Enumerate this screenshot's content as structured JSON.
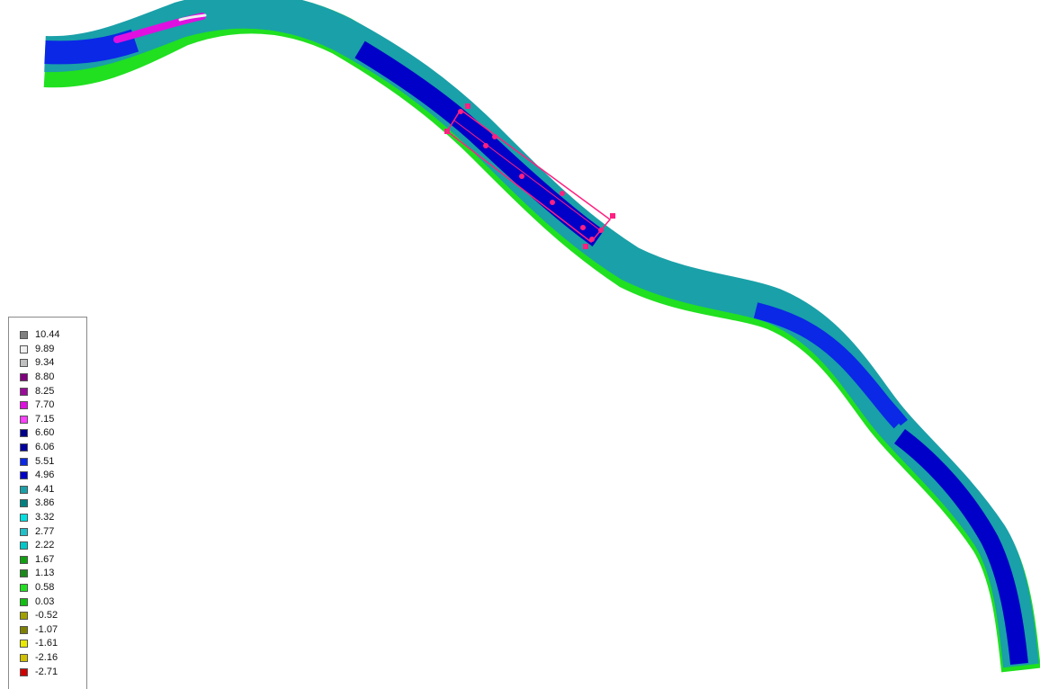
{
  "legend": {
    "entries": [
      {
        "label": "10.44",
        "color": "#808080"
      },
      {
        "label": "9.89",
        "color": "#f0f0f0"
      },
      {
        "label": "9.34",
        "color": "#c0c0c0"
      },
      {
        "label": "8.80",
        "color": "#800080"
      },
      {
        "label": "8.25",
        "color": "#9a0b9a"
      },
      {
        "label": "7.70",
        "color": "#e010e0"
      },
      {
        "label": "7.15",
        "color": "#ff40ff"
      },
      {
        "label": "6.60",
        "color": "#00008b"
      },
      {
        "label": "6.06",
        "color": "#0000a0"
      },
      {
        "label": "5.51",
        "color": "#0a28e6"
      },
      {
        "label": "4.96",
        "color": "#0000c8"
      },
      {
        "label": "4.41",
        "color": "#1aa0a8"
      },
      {
        "label": "3.86",
        "color": "#008080"
      },
      {
        "label": "3.32",
        "color": "#00e0e0"
      },
      {
        "label": "2.77",
        "color": "#20c0c8"
      },
      {
        "label": "2.22",
        "color": "#00c8c8"
      },
      {
        "label": "1.67",
        "color": "#10a010"
      },
      {
        "label": "1.13",
        "color": "#1a8a1a"
      },
      {
        "label": "0.58",
        "color": "#20e020"
      },
      {
        "label": "0.03",
        "color": "#10c010"
      },
      {
        "label": "-0.52",
        "color": "#a0a000"
      },
      {
        "label": "-1.07",
        "color": "#808000"
      },
      {
        "label": "-1.61",
        "color": "#e8e800"
      },
      {
        "label": "-2.16",
        "color": "#d0c000"
      },
      {
        "label": "-2.71",
        "color": "#d00000"
      }
    ]
  },
  "colors": {
    "river_base": "#1aa0a8",
    "deep": "#0000c8",
    "mid": "#0a28e6",
    "bank": "#20e020",
    "shallow": "#00e0e0",
    "high": "#e010e0",
    "selection": "#ff2080"
  }
}
